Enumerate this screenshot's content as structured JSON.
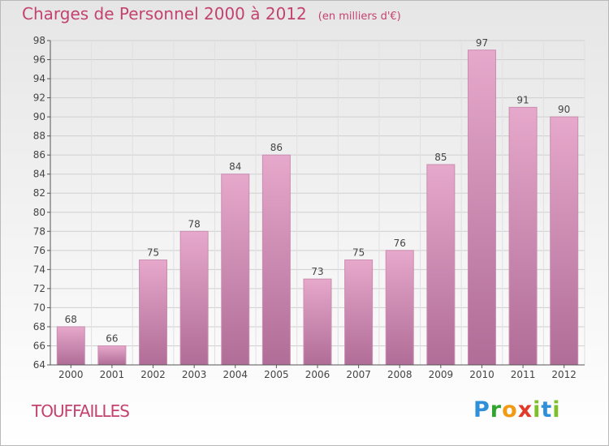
{
  "title": "Charges de Personnel 2000 à 2012",
  "subtitle": "(en milliers d'€)",
  "place": "TOUFFAILLES",
  "logo": "Proxiti",
  "colors": {
    "bar": "#d98fb8",
    "text": "#c3426f"
  },
  "chart_data": {
    "type": "bar",
    "title": "Charges de Personnel 2000 à 2012",
    "subtitle": "(en milliers d'€)",
    "categories": [
      "2000",
      "2001",
      "2002",
      "2003",
      "2004",
      "2005",
      "2006",
      "2007",
      "2008",
      "2009",
      "2010",
      "2011",
      "2012"
    ],
    "values": [
      68,
      66,
      75,
      78,
      84,
      86,
      73,
      75,
      76,
      85,
      97,
      91,
      90
    ],
    "ylim": [
      64,
      98
    ],
    "yticks": [
      64,
      66,
      68,
      70,
      72,
      74,
      76,
      78,
      80,
      82,
      84,
      86,
      88,
      90,
      92,
      94,
      96,
      98
    ],
    "grid": true,
    "data_labels": true
  }
}
